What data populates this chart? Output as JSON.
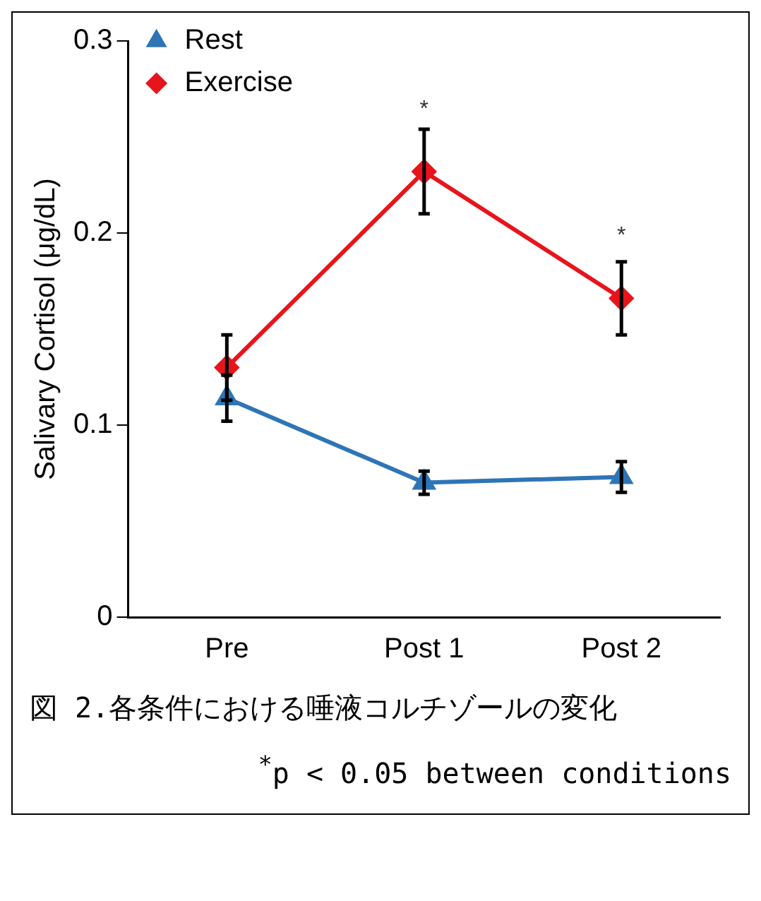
{
  "chart_data": {
    "type": "line",
    "ylabel": "Salivary Cortisol (μg/dL)",
    "categories": [
      "Pre",
      "Post 1",
      "Post 2"
    ],
    "series": [
      {
        "name": "Rest",
        "color": "#2e75b6",
        "marker": "triangle",
        "values": [
          0.114,
          0.07,
          0.073
        ],
        "errors": [
          0.012,
          0.006,
          0.008
        ]
      },
      {
        "name": "Exercise",
        "color": "#e8141c",
        "marker": "diamond",
        "values": [
          0.13,
          0.232,
          0.166
        ],
        "errors": [
          0.017,
          0.022,
          0.019
        ]
      }
    ],
    "ylim": [
      0,
      0.3
    ],
    "yticks": [
      0,
      0.1,
      0.2,
      0.3
    ],
    "grid": false,
    "legend": "top left",
    "line_style": "solid",
    "annotations": [
      {
        "text": "*",
        "x": "Post 1",
        "y": 0.232
      },
      {
        "text": "*",
        "x": "Post 2",
        "y": 0.166
      },
      "図 2.各条件における唾液コルチゾールの変化",
      "$^{*}$p < 0.05 between conditions"
    ]
  }
}
